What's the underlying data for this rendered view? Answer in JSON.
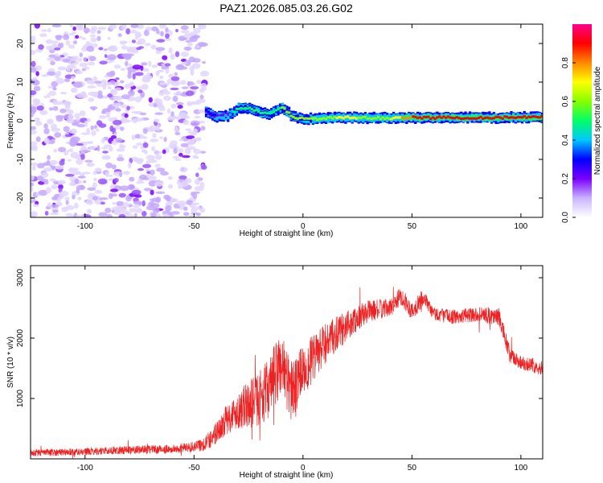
{
  "chart_data": [
    {
      "type": "heatmap",
      "title": "PAZ1.2026.085.03.26.G02",
      "xlabel": "Height of straight line (km)",
      "ylabel": "Frequency (Hz)",
      "xlim": [
        -125,
        110
      ],
      "ylim": [
        -25,
        25
      ],
      "xticks": [
        -100,
        -50,
        0,
        50,
        100
      ],
      "yticks": [
        -20,
        -10,
        0,
        10,
        20
      ],
      "noise_region_x": [
        -125,
        -45
      ],
      "signal_ridge": {
        "x": [
          -45,
          -40,
          -35,
          -30,
          -25,
          -20,
          -15,
          -10,
          -5,
          0,
          5,
          10,
          15,
          20,
          30,
          40,
          50,
          60,
          70,
          80,
          90,
          100,
          110
        ],
        "y": [
          2.5,
          1.0,
          1.2,
          3.3,
          3.3,
          2.0,
          1.8,
          3.5,
          1.0,
          0.5,
          0.5,
          0.6,
          0.8,
          0.8,
          0.7,
          0.7,
          0.8,
          0.8,
          0.8,
          0.8,
          0.8,
          0.9,
          0.9
        ],
        "amplitude": [
          0.3,
          0.35,
          0.4,
          0.5,
          0.5,
          0.5,
          0.5,
          0.55,
          0.55,
          0.55,
          0.6,
          0.6,
          0.65,
          0.7,
          0.6,
          0.65,
          0.85,
          0.9,
          0.9,
          0.85,
          0.9,
          0.9,
          0.9
        ]
      },
      "colorbar": {
        "label": "Normalized spectral amplitude",
        "range": [
          0,
          1
        ],
        "ticks": [
          "0.0",
          "0.2",
          "0.4",
          "0.6",
          "0.8"
        ],
        "colors": [
          "#ffffff",
          "#c8b4ff",
          "#7b00ff",
          "#0000ff",
          "#00c8ff",
          "#00ff66",
          "#88ff00",
          "#ffff00",
          "#ff8800",
          "#ff0000",
          "#ff0088"
        ]
      }
    },
    {
      "type": "line",
      "xlabel": "Height of straight line (km)",
      "ylabel": "SNR (10 * v/v)",
      "xlim": [
        -125,
        110
      ],
      "ylim": [
        0,
        3200
      ],
      "xticks": [
        -100,
        -50,
        0,
        50,
        100
      ],
      "yticks": [
        1000,
        2000,
        3000
      ],
      "color": "#ee2222",
      "envelope": {
        "x": [
          -125,
          -100,
          -80,
          -60,
          -50,
          -45,
          -40,
          -35,
          -30,
          -25,
          -20,
          -15,
          -10,
          -5,
          0,
          5,
          10,
          20,
          30,
          40,
          45,
          50,
          55,
          60,
          70,
          80,
          90,
          95,
          100,
          110
        ],
        "mean": [
          100,
          120,
          150,
          160,
          200,
          250,
          420,
          650,
          800,
          900,
          1000,
          1200,
          1600,
          1100,
          1500,
          1650,
          1900,
          2200,
          2450,
          2500,
          2700,
          2450,
          2650,
          2400,
          2350,
          2400,
          2350,
          1700,
          1600,
          1500
        ],
        "amp": [
          60,
          60,
          70,
          70,
          90,
          120,
          200,
          250,
          300,
          400,
          450,
          500,
          600,
          500,
          450,
          400,
          350,
          250,
          180,
          150,
          150,
          150,
          150,
          120,
          120,
          120,
          150,
          150,
          120,
          120
        ]
      }
    }
  ]
}
